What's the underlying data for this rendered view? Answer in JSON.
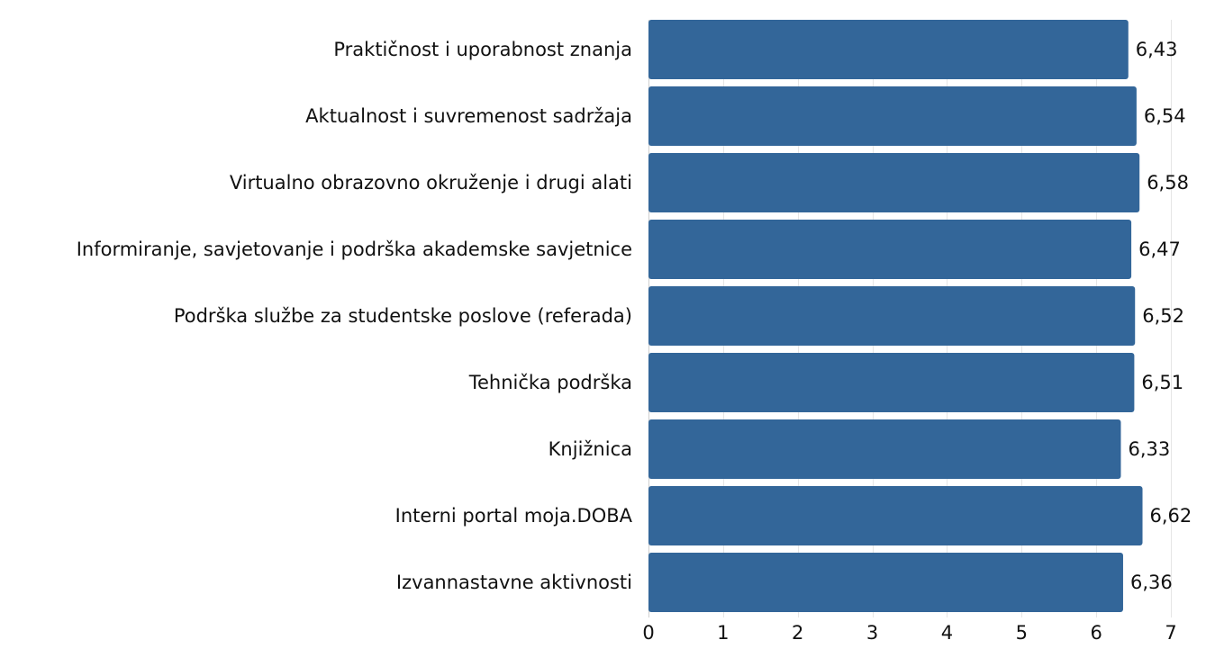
{
  "chart_data": {
    "type": "bar",
    "orientation": "horizontal",
    "categories": [
      "Praktičnost i uporabnost znanja",
      "Aktualnost i suvremenost sadržaja",
      "Virtualno obrazovno okruženje i drugi alati",
      "Informiranje, savjetovanje i podrška akademske savjetnice",
      "Podrška službe za studentske poslove (referada)",
      "Tehnička podrška",
      "Knjižnica",
      "Interni portal moja.DOBA",
      "Izvannastavne aktivnosti"
    ],
    "values": [
      6.43,
      6.54,
      6.58,
      6.47,
      6.52,
      6.51,
      6.33,
      6.62,
      6.36
    ],
    "value_labels": [
      "6,43",
      "6,54",
      "6,58",
      "6,47",
      "6,52",
      "6,51",
      "6,33",
      "6,62",
      "6,36"
    ],
    "xlim": [
      0,
      7
    ],
    "xticks": [
      0,
      1,
      2,
      3,
      4,
      5,
      6,
      7
    ],
    "xtick_labels": [
      "0",
      "1",
      "2",
      "3",
      "4",
      "5",
      "6",
      "7"
    ],
    "grid": true,
    "legend": "none",
    "colors": {
      "bar": "#336699",
      "grid": "#e6e6e6",
      "text": "#111111"
    }
  }
}
